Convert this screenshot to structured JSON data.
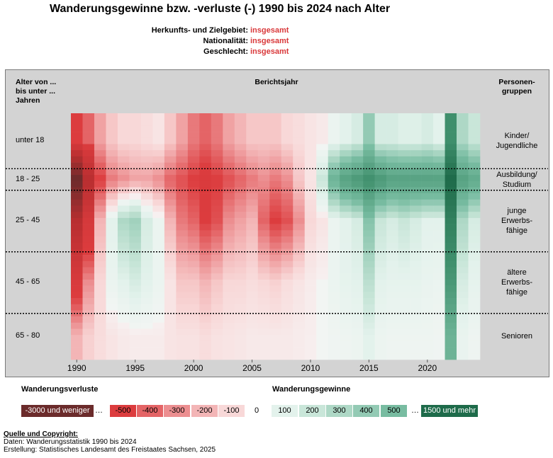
{
  "title": "Wanderungsgewinne bzw. -verluste (-) 1990 bis 2024 nach Alter",
  "filters": [
    {
      "label": "Herkunfts- und Zielgebiet:",
      "value": "insgesamt"
    },
    {
      "label": "Nationalität:",
      "value": "insgesamt"
    },
    {
      "label": "Geschlecht:",
      "value": "insgesamt"
    }
  ],
  "headers": {
    "age": "Alter von ...\nbis unter ...\nJahren",
    "year": "Berichtsjahr",
    "groups": "Personen-\ngruppen"
  },
  "legend": {
    "loss_title": "Wanderungsverluste",
    "gain_title": "Wanderungsgewinne",
    "loss_boxes": [
      {
        "label": "-3000 und weniger",
        "color": "#6b2b2b"
      },
      {
        "label": "-500",
        "color": "#dc3c3e"
      },
      {
        "label": "-400",
        "color": "#e46466"
      },
      {
        "label": "-300",
        "color": "#ec8e90"
      },
      {
        "label": "-200",
        "color": "#f3b5b6"
      },
      {
        "label": "-100",
        "color": "#f8d8d8"
      }
    ],
    "zero_label": "0",
    "ellipsis": "…",
    "gain_boxes": [
      {
        "label": "100",
        "color": "#e3f2ec"
      },
      {
        "label": "200",
        "color": "#c9e6d9"
      },
      {
        "label": "300",
        "color": "#aed8c6"
      },
      {
        "label": "400",
        "color": "#93cab4"
      },
      {
        "label": "500",
        "color": "#78bca1"
      },
      {
        "label": "1500 und mehr",
        "color": "#1e6b4a"
      }
    ]
  },
  "source": {
    "heading": "Quelle und Copyright:",
    "line1": "Daten: Wanderungsstatistik 1990 bis 2024",
    "line2": "Erstellung: Statistisches Landesamt des Freistaates Sachsen, 2025"
  },
  "chart_data": {
    "type": "heatmap",
    "x": "years 1990–2024",
    "x_ticks": [
      1990,
      1995,
      2000,
      2005,
      2010,
      2015,
      2020
    ],
    "x_range": [
      1990,
      2024
    ],
    "age_range": [
      0,
      80
    ],
    "age_bands": [
      {
        "label": "unter 18",
        "from": 0,
        "to": 18,
        "group": "Kinder/\nJugendliche"
      },
      {
        "label": "18 - 25",
        "from": 18,
        "to": 25,
        "group": "Ausbildung/\nStudium"
      },
      {
        "label": "25 - 45",
        "from": 25,
        "to": 45,
        "group": "junge\nErwerbs-\nfähige"
      },
      {
        "label": "45 - 65",
        "from": 45,
        "to": 65,
        "group": "ältere\nErwerbs-\nfähige"
      },
      {
        "label": "65 - 80",
        "from": 65,
        "to": 80,
        "group": "Senioren"
      }
    ],
    "value_scale": [
      -3000,
      -500,
      -400,
      -300,
      -200,
      -100,
      0,
      100,
      200,
      300,
      400,
      500,
      1500
    ],
    "approx_values_by_band": {
      "years": [
        1990,
        1991,
        1992,
        1993,
        1994,
        1995,
        1996,
        1997,
        1998,
        1999,
        2000,
        2001,
        2002,
        2003,
        2004,
        2005,
        2006,
        2007,
        2008,
        2009,
        2010,
        2011,
        2012,
        2013,
        2014,
        2015,
        2016,
        2017,
        2018,
        2019,
        2020,
        2021,
        2022,
        2023,
        2024
      ],
      "unter 18": [
        -500,
        -400,
        -250,
        -150,
        -100,
        -100,
        -80,
        -50,
        -150,
        -250,
        -350,
        -400,
        -350,
        -250,
        -200,
        -150,
        -150,
        -150,
        -100,
        -80,
        -50,
        -30,
        50,
        100,
        150,
        400,
        150,
        150,
        120,
        120,
        150,
        100,
        1000,
        300,
        200
      ],
      "18 - 25": [
        -3000,
        -1500,
        -500,
        -350,
        -300,
        -250,
        -250,
        -300,
        -400,
        -450,
        -500,
        -550,
        -500,
        -450,
        -400,
        -350,
        -300,
        -350,
        -300,
        -150,
        -50,
        200,
        600,
        800,
        900,
        1000,
        900,
        800,
        800,
        800,
        800,
        800,
        1500,
        800,
        700
      ],
      "25 - 45": [
        -1500,
        -700,
        -200,
        100,
        300,
        350,
        150,
        50,
        -200,
        -350,
        -400,
        -500,
        -450,
        -300,
        -250,
        -200,
        -400,
        -500,
        -450,
        -300,
        -100,
        -50,
        50,
        100,
        150,
        450,
        200,
        150,
        200,
        150,
        100,
        100,
        1200,
        300,
        150
      ],
      "45 - 65": [
        -600,
        -300,
        -100,
        50,
        100,
        150,
        100,
        50,
        -50,
        -150,
        -150,
        -200,
        -150,
        -100,
        -100,
        -80,
        -100,
        -120,
        -80,
        -50,
        -20,
        0,
        50,
        80,
        100,
        250,
        100,
        80,
        80,
        80,
        60,
        50,
        900,
        150,
        80
      ],
      "65 - 80": [
        -200,
        -120,
        -80,
        -50,
        -30,
        -20,
        -20,
        -20,
        -50,
        -60,
        -60,
        -80,
        -60,
        -50,
        -40,
        -30,
        -30,
        -30,
        -30,
        -20,
        -10,
        0,
        20,
        30,
        40,
        100,
        40,
        30,
        30,
        30,
        30,
        20,
        600,
        60,
        30
      ]
    }
  }
}
